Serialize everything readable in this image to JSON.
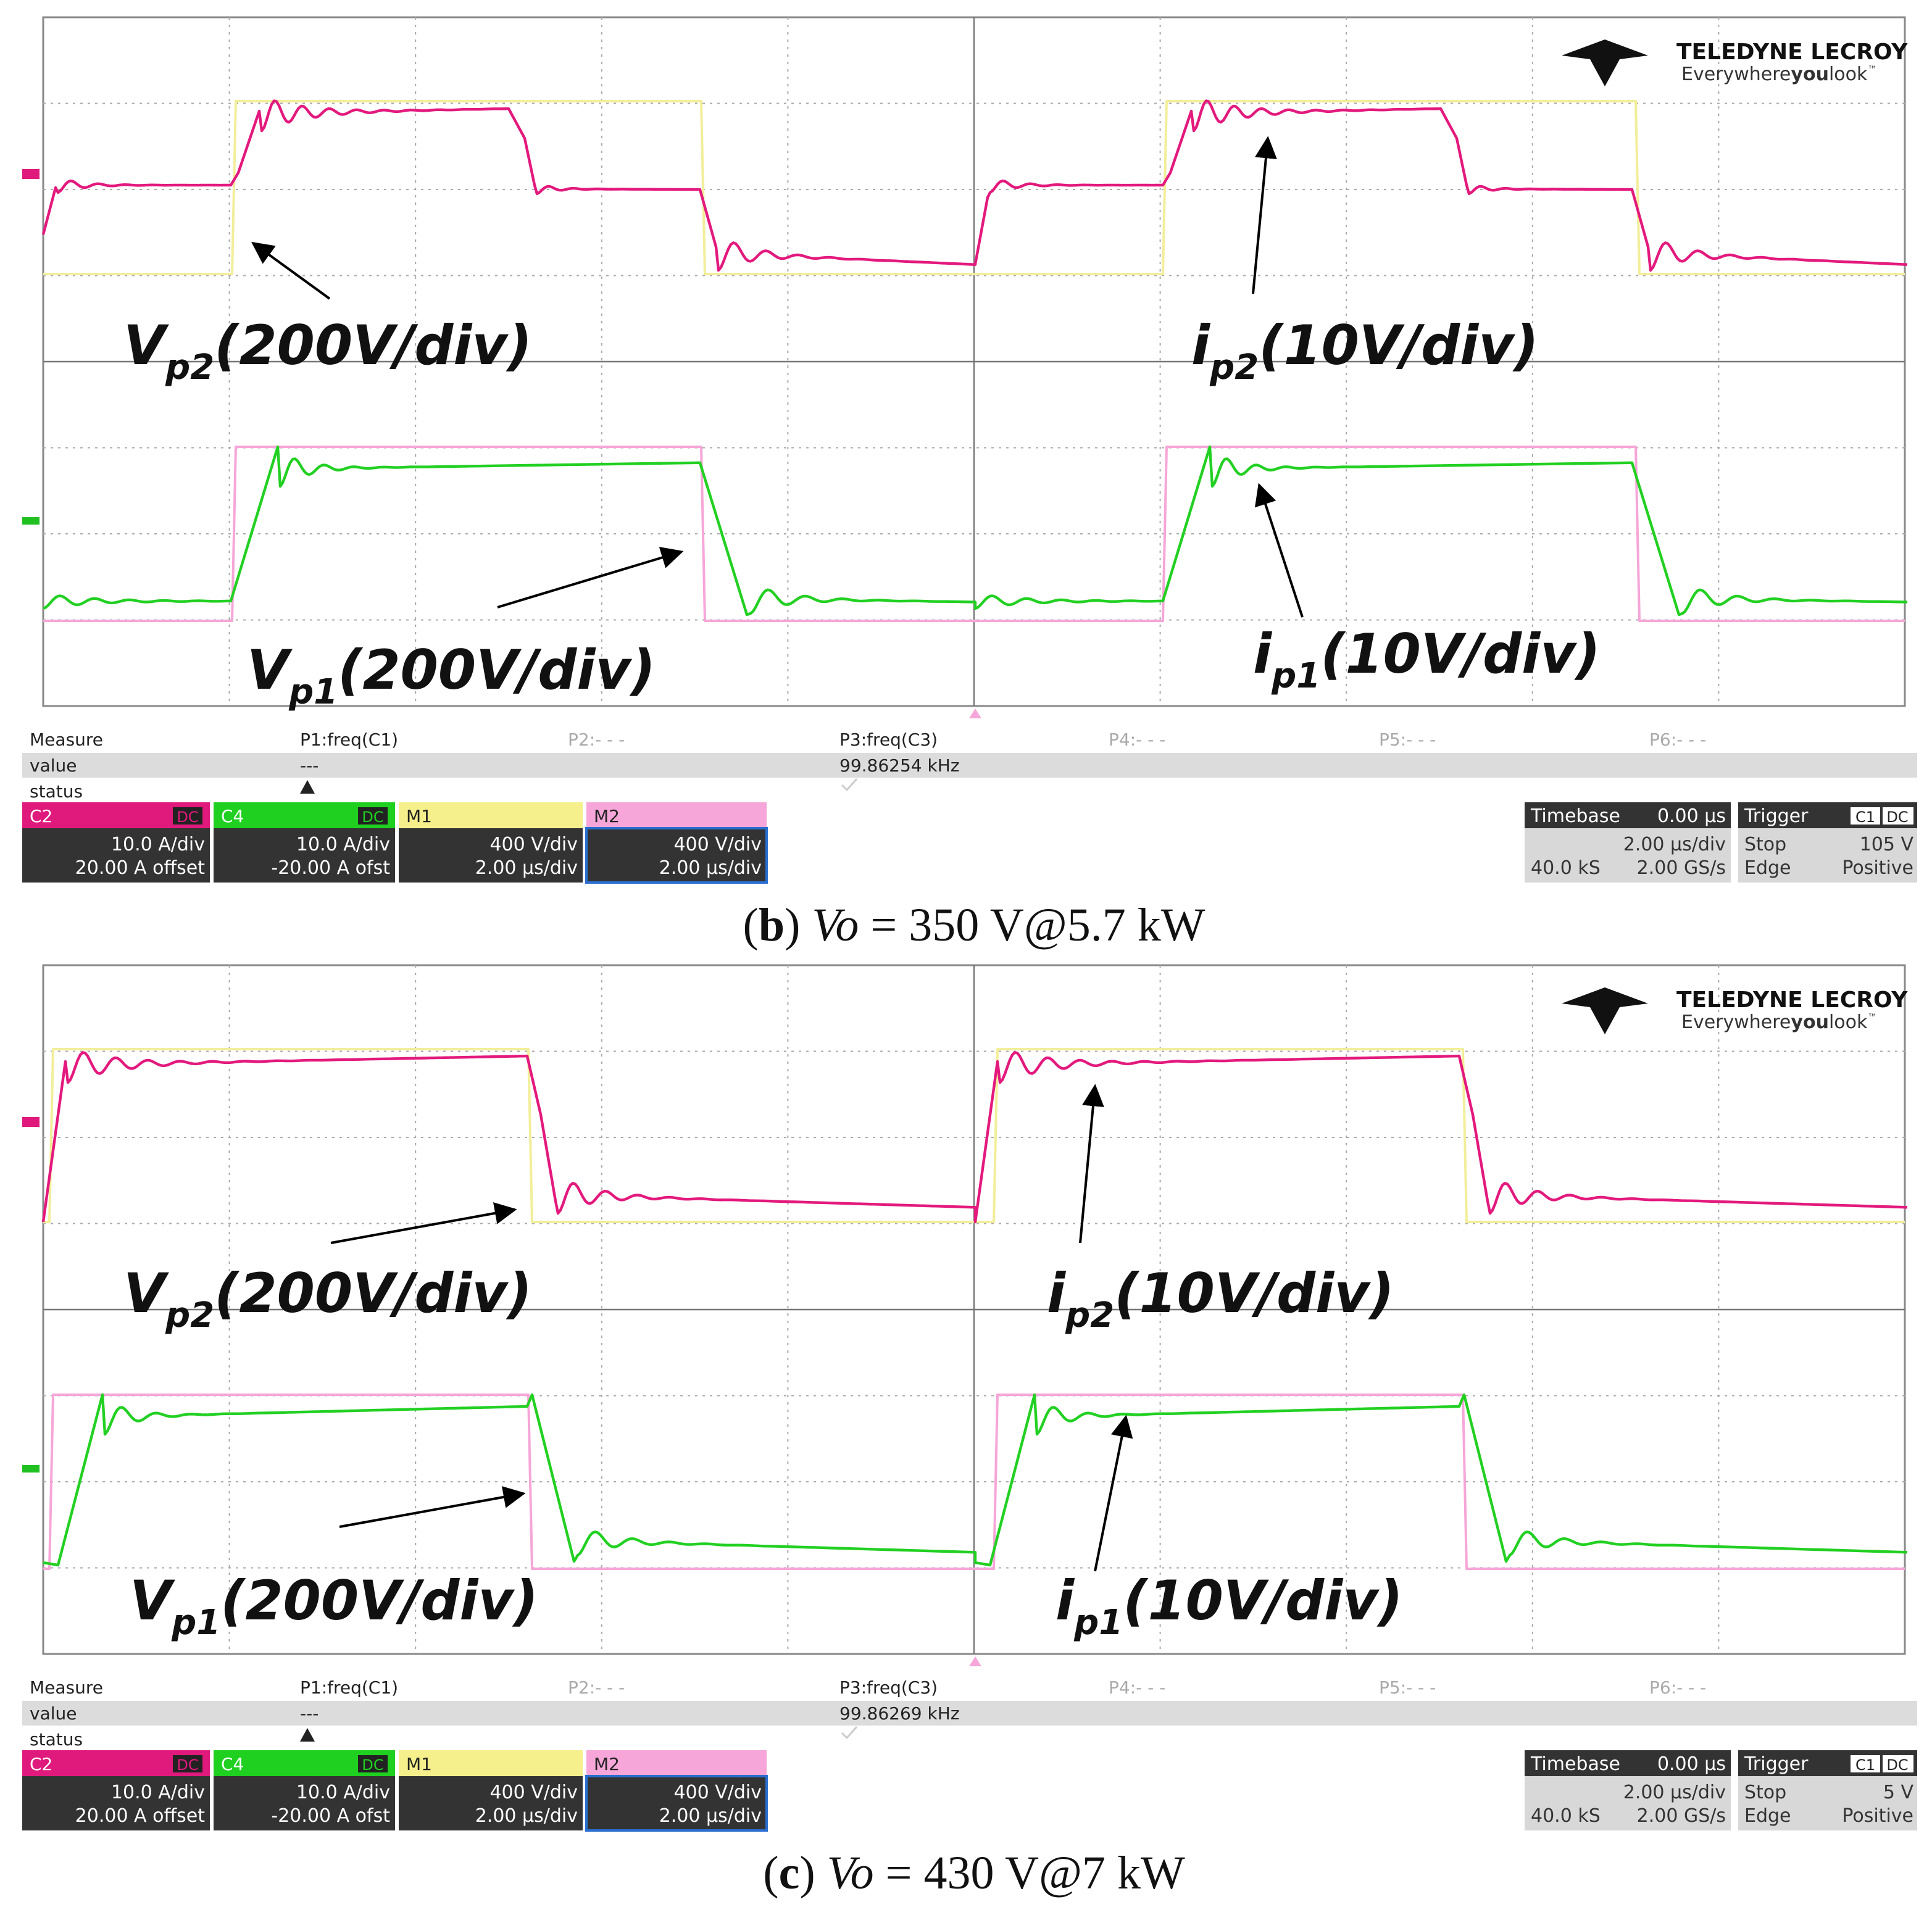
{
  "panels": [
    {
      "logo": {
        "brand": "TELEDYNE LECROY",
        "tagline": [
          "Everywhere",
          "you",
          "look",
          "™"
        ]
      },
      "labels": [
        {
          "main": "V",
          "sub": "p2",
          "rest": "(200V/div)"
        },
        {
          "main": "i",
          "sub": "p2",
          "rest": "(10V/div)"
        },
        {
          "main": "V",
          "sub": "p1",
          "rest": "(200V/div)"
        },
        {
          "main": "i",
          "sub": "p1",
          "rest": "(10V/div)"
        }
      ],
      "measure": {
        "header": [
          "Measure",
          "P1:freq(C1)",
          "P2:- - -",
          "P3:freq(C3)",
          "P4:- - -",
          "P5:- - -",
          "P6:- - -"
        ],
        "value": [
          "value",
          "---",
          "99.86254 kHz"
        ],
        "status": "status"
      },
      "channels": [
        {
          "name": "C2",
          "coupling": "DC",
          "scale": "10.0 A/div",
          "offset": "20.00 A offset"
        },
        {
          "name": "C4",
          "coupling": "DC",
          "scale": "10.0 A/div",
          "offset": "-20.00 A ofst"
        },
        {
          "name": "M1",
          "scale": "400 V/div",
          "offset": "2.00 µs/div"
        },
        {
          "name": "M2",
          "scale": "400 V/div",
          "offset": "2.00 µs/div"
        }
      ],
      "timebase": {
        "title": "Timebase",
        "delay": "0.00 µs",
        "div": "2.00 µs/div",
        "samples": "40.0 kS",
        "rate": "2.00 GS/s"
      },
      "trigger": {
        "title": "Trigger",
        "source": "C1",
        "coupling": "DC",
        "mode": "Stop",
        "level": "105 V",
        "type": "Edge",
        "slope": "Positive"
      },
      "caption": [
        "(",
        "b",
        ") ",
        "Vo",
        " = 350 V@5.7 kW"
      ]
    },
    {
      "logo": {
        "brand": "TELEDYNE LECROY",
        "tagline": [
          "Everywhere",
          "you",
          "look",
          "™"
        ]
      },
      "labels": [
        {
          "main": "V",
          "sub": "p2",
          "rest": "(200V/div)"
        },
        {
          "main": "i",
          "sub": "p2",
          "rest": "(10V/div)"
        },
        {
          "main": "V",
          "sub": "p1",
          "rest": "(200V/div)"
        },
        {
          "main": "i",
          "sub": "p1",
          "rest": "(10V/div)"
        }
      ],
      "measure": {
        "header": [
          "Measure",
          "P1:freq(C1)",
          "P2:- - -",
          "P3:freq(C3)",
          "P4:- - -",
          "P5:- - -",
          "P6:- - -"
        ],
        "value": [
          "value",
          "---",
          "99.86269 kHz"
        ],
        "status": "status"
      },
      "channels": [
        {
          "name": "C2",
          "coupling": "DC",
          "scale": "10.0 A/div",
          "offset": "20.00 A offset"
        },
        {
          "name": "C4",
          "coupling": "DC",
          "scale": "10.0 A/div",
          "offset": "-20.00 A ofst"
        },
        {
          "name": "M1",
          "scale": "400 V/div",
          "offset": "2.00 µs/div"
        },
        {
          "name": "M2",
          "scale": "400 V/div",
          "offset": "2.00 µs/div"
        }
      ],
      "timebase": {
        "title": "Timebase",
        "delay": "0.00 µs",
        "div": "2.00 µs/div",
        "samples": "40.0 kS",
        "rate": "2.00 GS/s"
      },
      "trigger": {
        "title": "Trigger",
        "source": "C1",
        "coupling": "DC",
        "mode": "Stop",
        "level": "5 V",
        "type": "Edge",
        "slope": "Positive"
      },
      "caption": [
        "(",
        "c",
        ") ",
        "Vo",
        " = 430 V@7 kW"
      ]
    }
  ]
}
